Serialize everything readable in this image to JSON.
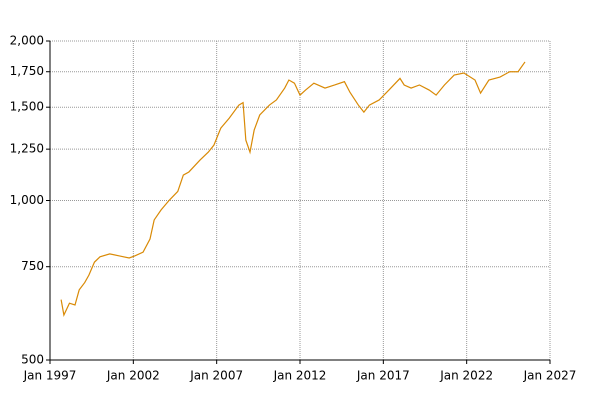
{
  "chart_data": {
    "type": "line",
    "x": [
      "1997-09",
      "1997-11",
      "1998-03",
      "1998-07",
      "1998-10",
      "1999-02",
      "1999-05",
      "1999-09",
      "2000-01",
      "2000-08",
      "2001-03",
      "2001-10",
      "2002-02",
      "2002-08",
      "2003-01",
      "2003-04",
      "2003-09",
      "2004-03",
      "2004-09",
      "2005-01",
      "2005-05",
      "2006-01",
      "2006-07",
      "2006-11",
      "2007-04",
      "2007-10",
      "2008-05",
      "2008-08",
      "2008-10",
      "2009-01",
      "2009-04",
      "2009-08",
      "2010-03",
      "2010-08",
      "2011-02",
      "2011-05",
      "2011-09",
      "2012-01",
      "2012-05",
      "2012-11",
      "2013-07",
      "2014-02",
      "2014-09",
      "2015-01",
      "2015-07",
      "2015-11",
      "2016-03",
      "2016-10",
      "2017-05",
      "2018-01",
      "2018-04",
      "2018-09",
      "2019-03",
      "2019-10",
      "2020-03",
      "2020-09",
      "2021-04",
      "2021-11",
      "2022-07",
      "2022-11",
      "2023-05",
      "2024-01",
      "2024-08",
      "2025-02",
      "2025-07"
    ],
    "values": [
      650,
      608,
      640,
      635,
      678,
      700,
      723,
      765,
      783,
      793,
      786,
      779,
      786,
      799,
      846,
      919,
      960,
      1002,
      1040,
      1117,
      1132,
      1192,
      1234,
      1272,
      1370,
      1430,
      1514,
      1530,
      1300,
      1234,
      1358,
      1450,
      1514,
      1548,
      1630,
      1688,
      1665,
      1581,
      1616,
      1665,
      1630,
      1652,
      1676,
      1600,
      1514,
      1468,
      1514,
      1548,
      1616,
      1700,
      1652,
      1630,
      1652,
      1616,
      1581,
      1652,
      1725,
      1740,
      1688,
      1595,
      1688,
      1710,
      1750,
      1750,
      1826
    ],
    "color": "#d98a06",
    "xlim": [
      "1997-01",
      "2027-01"
    ],
    "xticks": [
      {
        "value": "1997-01",
        "label": "Jan 1997"
      },
      {
        "value": "2002-01",
        "label": "Jan 2002"
      },
      {
        "value": "2007-01",
        "label": "Jan 2007"
      },
      {
        "value": "2012-01",
        "label": "Jan 2012"
      },
      {
        "value": "2017-01",
        "label": "Jan 2017"
      },
      {
        "value": "2022-01",
        "label": "Jan 2022"
      },
      {
        "value": "2027-01",
        "label": "Jan 2027"
      }
    ],
    "ylim": [
      500,
      2000
    ],
    "yticks": [
      500,
      750,
      {
        "value": 1000,
        "label": "1,000"
      },
      {
        "value": 1250,
        "label": "1,250"
      },
      {
        "value": 1500,
        "label": "1,500"
      },
      {
        "value": 1750,
        "label": "1,750"
      },
      {
        "value": 2000,
        "label": "2,000"
      }
    ],
    "log_y": true,
    "grid": true
  }
}
